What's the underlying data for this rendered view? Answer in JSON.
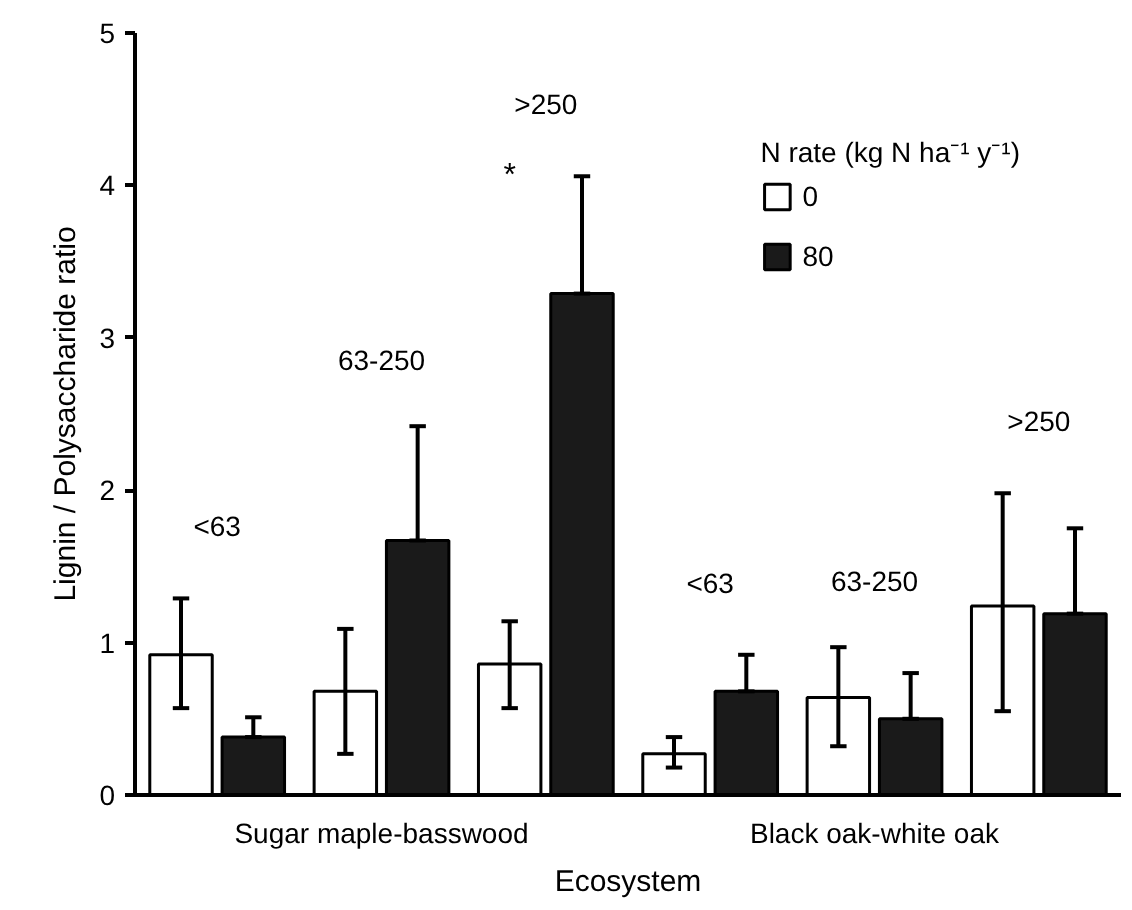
{
  "chart_data": {
    "type": "bar",
    "xlabel": "Ecosystem",
    "ylabel": "Lignin / Polysaccharide ratio",
    "legend_title": "N rate (kg N ha⁻¹ y⁻¹)",
    "categories": [
      "<63",
      "63-250",
      ">250",
      "<63",
      "63-250",
      ">250"
    ],
    "series": [
      {
        "name": "0",
        "color": "#ffffff",
        "values": [
          0.92,
          0.68,
          0.86,
          0.27,
          0.64,
          1.24
        ],
        "errors": [
          [
            0.57,
            1.29
          ],
          [
            0.27,
            1.09
          ],
          [
            0.57,
            1.14
          ],
          [
            0.18,
            0.38
          ],
          [
            0.32,
            0.97
          ],
          [
            0.55,
            1.98
          ]
        ]
      },
      {
        "name": "80",
        "color": "#1a1a1a",
        "values": [
          0.38,
          1.67,
          3.29,
          0.68,
          0.5,
          1.19
        ],
        "errors": [
          [
            0.38,
            0.51
          ],
          [
            1.67,
            2.42
          ],
          [
            3.29,
            4.06
          ],
          [
            0.68,
            0.92
          ],
          [
            0.5,
            0.8
          ],
          [
            1.19,
            1.75
          ]
        ]
      }
    ],
    "annotations": [
      "Sugar maple-basswood",
      "Black oak-white oak",
      "*"
    ],
    "ylim": [
      0,
      5
    ],
    "yticks": [
      0,
      1,
      2,
      3,
      4,
      5
    ],
    "grid": false,
    "legend": "top right"
  }
}
